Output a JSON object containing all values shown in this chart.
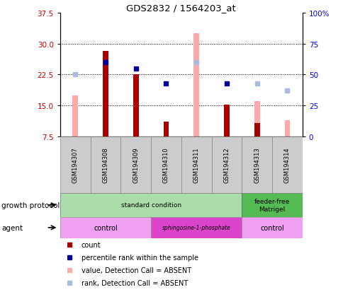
{
  "title": "GDS2832 / 1564203_at",
  "samples": [
    "GSM194307",
    "GSM194308",
    "GSM194309",
    "GSM194310",
    "GSM194311",
    "GSM194312",
    "GSM194313",
    "GSM194314"
  ],
  "ylim_left": [
    7.5,
    37.5
  ],
  "ylim_right": [
    0,
    100
  ],
  "yticks_left": [
    7.5,
    15.0,
    22.5,
    30.0,
    37.5
  ],
  "yticks_right": [
    0,
    25,
    50,
    75,
    100
  ],
  "count_bars": [
    {
      "idx": 1,
      "val": 28.2
    },
    {
      "idx": 2,
      "val": 22.5
    },
    {
      "idx": 3,
      "val": 11.0
    },
    {
      "idx": 5,
      "val": 15.2
    },
    {
      "idx": 6,
      "val": 10.8
    }
  ],
  "absent_value_bars": [
    {
      "idx": 0,
      "val": 17.5
    },
    {
      "idx": 4,
      "val": 32.5
    },
    {
      "idx": 6,
      "val": 16.0
    },
    {
      "idx": 7,
      "val": 11.5
    }
  ],
  "percentile_rank_present": [
    {
      "idx": 1,
      "val": 60
    },
    {
      "idx": 2,
      "val": 55
    },
    {
      "idx": 3,
      "val": 43
    },
    {
      "idx": 5,
      "val": 43
    }
  ],
  "percentile_rank_absent": [
    {
      "idx": 0,
      "val": 50
    },
    {
      "idx": 4,
      "val": 60
    },
    {
      "idx": 6,
      "val": 43
    },
    {
      "idx": 7,
      "val": 37
    }
  ],
  "growth_protocol_groups": [
    {
      "label": "standard condition",
      "start": 0,
      "end": 6,
      "color": "#aaddaa"
    },
    {
      "label": "feeder-free\nMatrigel",
      "start": 6,
      "end": 8,
      "color": "#55bb55"
    }
  ],
  "agent_groups": [
    {
      "label": "control",
      "start": 0,
      "end": 3,
      "color": "#f0a0f0"
    },
    {
      "label": "sphingosine-1-phosphate",
      "start": 3,
      "end": 6,
      "color": "#dd44cc"
    },
    {
      "label": "control",
      "start": 6,
      "end": 8,
      "color": "#f0a0f0"
    }
  ],
  "count_color": "#aa0000",
  "absent_value_color": "#ffaaaa",
  "rank_present_color": "#000099",
  "rank_absent_color": "#aabbdd",
  "sample_box_color": "#cccccc",
  "base_value": 7.5
}
